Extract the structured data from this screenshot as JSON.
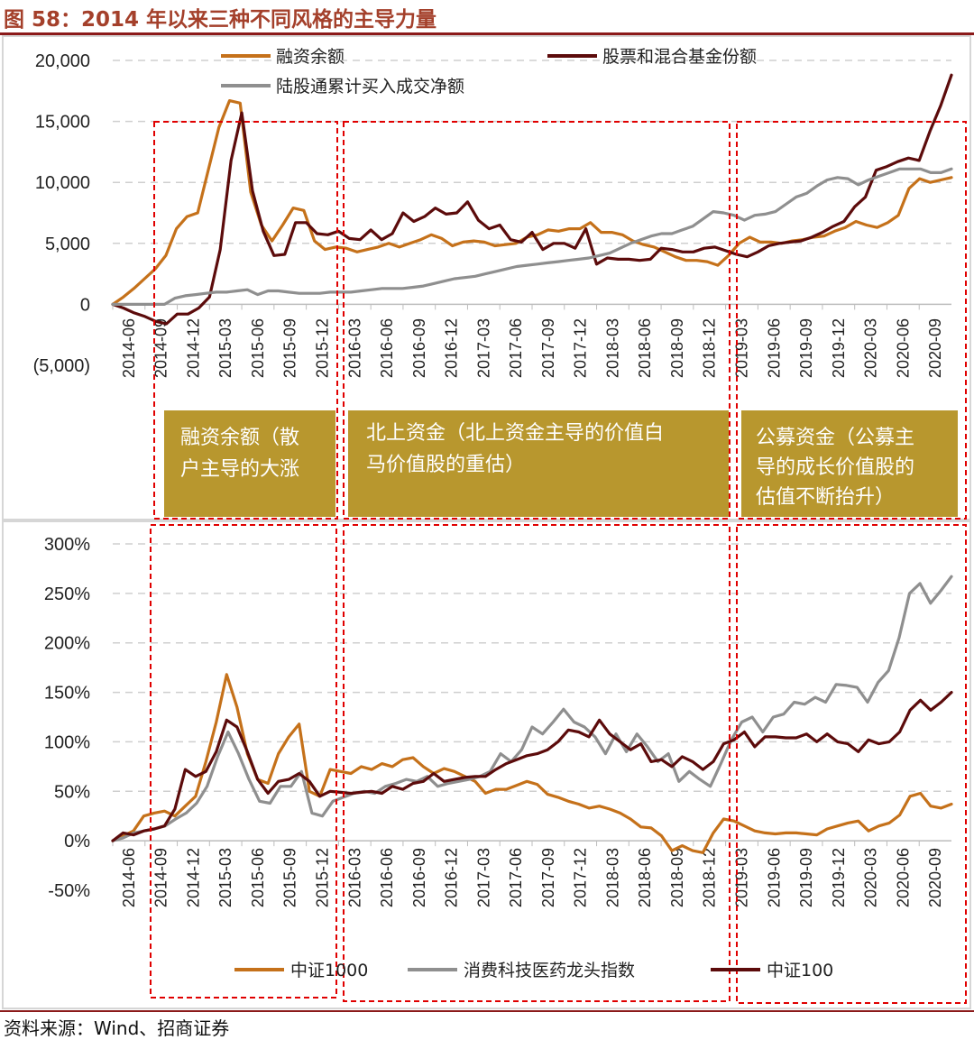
{
  "figure_title": "图 58：2014 年以来三种不同风格的主导力量",
  "source": "资料来源：Wind、招商证券",
  "colors": {
    "orange": "#c5711a",
    "darkred": "#5c0b0b",
    "gray": "#8f8f8f",
    "phase_box": "#b8972e",
    "red_dash": "#e00000",
    "title": "#a4402b"
  },
  "chart_data": [
    {
      "type": "line",
      "id": "top",
      "ylim": [
        -5000,
        20000
      ],
      "yticks": [
        {
          "value": 20000,
          "label": "20,000"
        },
        {
          "value": 15000,
          "label": "15,000"
        },
        {
          "value": 10000,
          "label": "10,000"
        },
        {
          "value": 5000,
          "label": "5,000"
        },
        {
          "value": 0,
          "label": "0"
        },
        {
          "value": -5000,
          "label": "(5,000)"
        }
      ],
      "xlabels": [
        "2014-06",
        "2014-09",
        "2014-12",
        "2015-03",
        "2015-06",
        "2015-09",
        "2015-12",
        "2016-03",
        "2016-06",
        "2016-09",
        "2016-12",
        "2017-03",
        "2017-06",
        "2017-09",
        "2017-12",
        "2018-03",
        "2018-06",
        "2018-09",
        "2018-12",
        "2019-03",
        "2019-06",
        "2019-09",
        "2019-12",
        "2020-03",
        "2020-06",
        "2020-09"
      ],
      "series": [
        {
          "name": "融资余额",
          "color": "#c5711a",
          "values": [
            0,
            600,
            1300,
            2100,
            2900,
            4000,
            6200,
            7200,
            7500,
            11000,
            14500,
            16700,
            16500,
            9200,
            6500,
            5200,
            6500,
            7900,
            7700,
            5200,
            4500,
            4700,
            4600,
            4300,
            4500,
            4700,
            5000,
            4700,
            5000,
            5300,
            5700,
            5400,
            4800,
            5100,
            5200,
            5100,
            4800,
            4900,
            5000,
            5500,
            5700,
            6100,
            6000,
            6200,
            6200,
            6700,
            5900,
            5900,
            5700,
            5200,
            4900,
            4700,
            4300,
            3900,
            3600,
            3600,
            3500,
            3200,
            4000,
            5000,
            5500,
            5100,
            5100,
            5000,
            5200,
            5300,
            5500,
            5600,
            6000,
            6300,
            6800,
            6500,
            6300,
            6700,
            7300,
            9500,
            10300,
            10000,
            10200,
            10400
          ]
        },
        {
          "name": "股票和混合基金份额",
          "color": "#5c0b0b",
          "values": [
            0,
            -300,
            -700,
            -1000,
            -1400,
            -1600,
            -800,
            -800,
            -300,
            600,
            4500,
            11800,
            15700,
            9300,
            6000,
            4000,
            4100,
            6700,
            6700,
            5800,
            5700,
            6000,
            5400,
            5300,
            6100,
            5300,
            5800,
            7500,
            6800,
            7200,
            7900,
            7400,
            7500,
            8400,
            6900,
            6200,
            6500,
            5300,
            5100,
            5900,
            4500,
            5000,
            5000,
            4600,
            6200,
            3300,
            3800,
            3700,
            3700,
            3600,
            3700,
            4600,
            4500,
            4300,
            4300,
            4600,
            4700,
            4400,
            4100,
            3900,
            4300,
            4800,
            5000,
            5100,
            5200,
            5500,
            5900,
            6400,
            6800,
            8000,
            8800,
            11000,
            11300,
            11700,
            12000,
            11800,
            14200,
            16300,
            18800
          ]
        },
        {
          "name": "陆股通累计买入成交净额",
          "color": "#8f8f8f",
          "values": [
            0,
            0,
            0,
            0,
            0,
            0,
            500,
            700,
            800,
            900,
            1000,
            1000,
            1100,
            1200,
            800,
            1100,
            1100,
            1000,
            900,
            900,
            900,
            1000,
            1000,
            1000,
            1100,
            1200,
            1300,
            1300,
            1300,
            1400,
            1500,
            1700,
            1900,
            2100,
            2200,
            2300,
            2500,
            2700,
            2900,
            3100,
            3200,
            3300,
            3400,
            3500,
            3600,
            3700,
            3800,
            4000,
            4200,
            4600,
            5000,
            5300,
            5600,
            5800,
            5800,
            6100,
            6400,
            7000,
            7600,
            7500,
            7300,
            6900,
            7300,
            7400,
            7600,
            8200,
            8800,
            9100,
            9700,
            10200,
            10400,
            10300,
            9800,
            10200,
            10500,
            10800,
            11100,
            11100,
            11100,
            10800,
            10800,
            11100
          ]
        }
      ]
    },
    {
      "type": "line",
      "id": "bottom",
      "ylim": [
        -50,
        300
      ],
      "yticks": [
        {
          "value": 300,
          "label": "300%"
        },
        {
          "value": 250,
          "label": "250%"
        },
        {
          "value": 200,
          "label": "200%"
        },
        {
          "value": 150,
          "label": "150%"
        },
        {
          "value": 100,
          "label": "100%"
        },
        {
          "value": 50,
          "label": "50%"
        },
        {
          "value": 0,
          "label": "0%"
        },
        {
          "value": -50,
          "label": "-50%"
        }
      ],
      "xlabels": [
        "2014-06",
        "2014-09",
        "2014-12",
        "2015-03",
        "2015-06",
        "2015-09",
        "2015-12",
        "2016-03",
        "2016-06",
        "2016-09",
        "2016-12",
        "2017-03",
        "2017-06",
        "2017-09",
        "2017-12",
        "2018-03",
        "2018-06",
        "2018-09",
        "2018-12",
        "2019-03",
        "2019-06",
        "2019-09",
        "2019-12",
        "2020-03",
        "2020-06",
        "2020-09"
      ],
      "series": [
        {
          "name": "中证1000",
          "color": "#c5711a",
          "values": [
            0,
            5,
            10,
            25,
            28,
            30,
            25,
            35,
            45,
            80,
            120,
            168,
            135,
            88,
            62,
            58,
            88,
            105,
            118,
            50,
            45,
            72,
            70,
            68,
            75,
            72,
            78,
            75,
            82,
            84,
            75,
            68,
            73,
            70,
            65,
            60,
            48,
            52,
            52,
            56,
            60,
            57,
            47,
            44,
            40,
            37,
            33,
            35,
            32,
            28,
            22,
            14,
            13,
            5,
            -10,
            -5,
            -10,
            -12,
            8,
            22,
            20,
            15,
            10,
            8,
            7,
            8,
            8,
            7,
            6,
            12,
            15,
            18,
            20,
            10,
            15,
            18,
            26,
            45,
            48,
            35,
            33,
            37
          ]
        },
        {
          "name": "消费科技医药龙头指数",
          "color": "#8f8f8f",
          "values": [
            0,
            3,
            8,
            10,
            12,
            15,
            22,
            28,
            38,
            55,
            85,
            110,
            88,
            62,
            40,
            38,
            55,
            55,
            70,
            28,
            25,
            40,
            44,
            48,
            50,
            48,
            55,
            58,
            62,
            60,
            65,
            55,
            58,
            60,
            62,
            65,
            70,
            88,
            80,
            92,
            115,
            108,
            120,
            133,
            120,
            115,
            105,
            88,
            108,
            90,
            108,
            95,
            80,
            88,
            60,
            70,
            62,
            55,
            78,
            102,
            120,
            125,
            110,
            125,
            128,
            140,
            138,
            145,
            140,
            158,
            157,
            155,
            140,
            160,
            172,
            205,
            250,
            260,
            240,
            253,
            267
          ]
        },
        {
          "name": "中证100",
          "color": "#5c0b0b",
          "values": [
            0,
            8,
            6,
            10,
            12,
            15,
            32,
            72,
            65,
            70,
            90,
            122,
            115,
            90,
            62,
            48,
            60,
            62,
            68,
            60,
            45,
            50,
            49,
            48,
            49,
            50,
            48,
            55,
            52,
            58,
            60,
            68,
            60,
            62,
            64,
            65,
            65,
            72,
            78,
            82,
            86,
            88,
            92,
            100,
            112,
            110,
            105,
            122,
            108,
            100,
            92,
            98,
            80,
            82,
            75,
            85,
            80,
            72,
            80,
            98,
            102,
            110,
            95,
            105,
            105,
            104,
            104,
            108,
            100,
            108,
            100,
            98,
            90,
            102,
            98,
            100,
            110,
            132,
            142,
            132,
            140,
            150
          ]
        }
      ]
    }
  ],
  "legend_top": {
    "a": "融资余额",
    "b": "股票和混合基金份额",
    "c": "陆股通累计买入成交净额"
  },
  "legend_bottom": {
    "a": "中证1000",
    "b": "消费科技医药龙头指数",
    "c": "中证100"
  },
  "phases": [
    {
      "line1": "融资余额（散",
      "line2": "户主导的大涨",
      "line3": ""
    },
    {
      "line1": "北上资金（北上资金主导的价值白",
      "line2": "马价值股的重估）",
      "line3": ""
    },
    {
      "line1": "公募资金（公募主",
      "line2": "导的成长价值股的",
      "line3": "估值不断抬升）"
    }
  ]
}
